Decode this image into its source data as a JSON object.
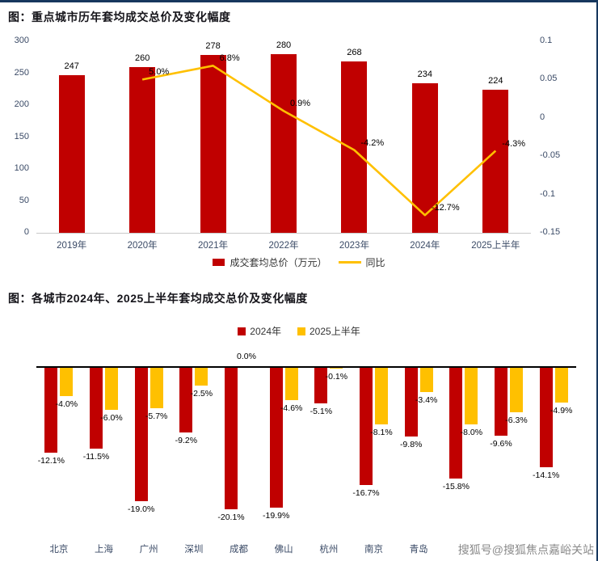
{
  "watermark": "搜狐号@搜狐焦点嘉峪关站",
  "chart_data": [
    {
      "type": "bar+line",
      "title": "图：重点城市历年套均成交总价及变化幅度",
      "legend": {
        "bar_label": "成交套均总价（万元）",
        "line_label": "同比",
        "position": "bottom"
      },
      "colors": {
        "bar": "#c00000",
        "line": "#ffc000"
      },
      "grid": false,
      "categories": [
        "2019年",
        "2020年",
        "2021年",
        "2022年",
        "2023年",
        "2024年",
        "2025上半年"
      ],
      "bar_values": [
        247,
        260,
        278,
        280,
        268,
        234,
        224
      ],
      "line_values": [
        null,
        0.05,
        0.068,
        0.009,
        -0.042,
        -0.127,
        -0.043
      ],
      "line_labels": [
        "",
        "5.0%",
        "6.8%",
        "0.9%",
        "-4.2%",
        "-12.7%",
        "-4.3%"
      ],
      "left_axis": {
        "min": 0,
        "max": 300,
        "ticks": [
          "300",
          "250",
          "200",
          "150",
          "100",
          "50",
          "0"
        ]
      },
      "right_axis": {
        "min": -0.15,
        "max": 0.1,
        "ticks": [
          "0.1",
          "0.05",
          "0",
          "-0.05",
          "-0.1",
          "-0.15"
        ]
      }
    },
    {
      "type": "bar",
      "title": "图：各城市2024年、2025上半年套均成交总价及变化幅度",
      "legend_position": "top",
      "categories": [
        "北京",
        "上海",
        "广州",
        "深圳",
        "成都",
        "佛山",
        "杭州",
        "南京",
        "青岛",
        "",
        "",
        ""
      ],
      "series": [
        {
          "name": "2024年",
          "color": "#c00000",
          "values": [
            -12.1,
            -11.5,
            -19.0,
            -9.2,
            -20.1,
            -19.9,
            -5.1,
            -16.7,
            -9.8,
            -15.8,
            -9.6,
            -14.1
          ],
          "labels": [
            "-12.1%",
            "-11.5%",
            "-19.0%",
            "-9.2%",
            "-20.1%",
            "-19.9%",
            "-5.1%",
            "-16.7%",
            "-9.8%",
            "-15.8%",
            "-9.6%",
            "-14.1%"
          ]
        },
        {
          "name": "2025上半年",
          "color": "#ffc000",
          "values": [
            -4.0,
            -6.0,
            -5.7,
            -2.5,
            0.0,
            -4.6,
            -0.1,
            -8.1,
            -3.4,
            -8.0,
            -6.3,
            -4.9
          ],
          "labels": [
            "-4.0%",
            "-6.0%",
            "-5.7%",
            "-2.5%",
            "0.0%",
            "-4.6%",
            "-0.1%",
            "-8.1%",
            "-3.4%",
            "-8.0%",
            "-6.3%",
            "-4.9%"
          ]
        }
      ]
    }
  ]
}
